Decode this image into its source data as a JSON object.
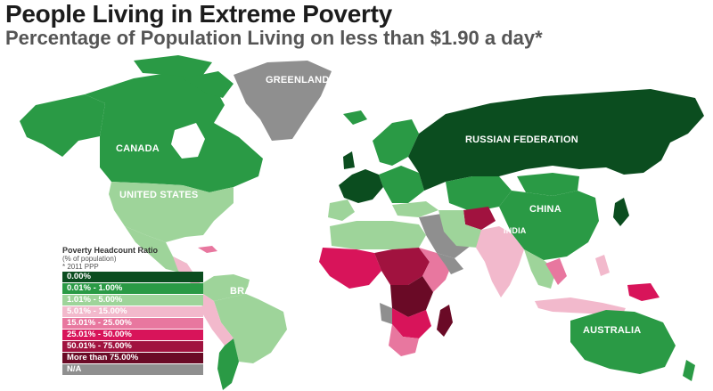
{
  "header": {
    "title": "People Living in Extreme Poverty",
    "subtitle": "Percentage of Population Living on less than $1.90 a day*"
  },
  "labels": {
    "greenland": "GREENLAND",
    "canada": "CANADA",
    "united_states": "UNITED STATES",
    "brazil": "BRAZIL",
    "russia": "RUSSIAN FEDERATION",
    "china": "CHINA",
    "india": "INDIA",
    "australia": "AUSTRALIA"
  },
  "legend": {
    "title": "Poverty Headcount Ratio",
    "subtitle": "(% of population)",
    "note": "* 2011 PPP",
    "items": [
      {
        "label": "0.00%",
        "color": "#0b4d1f"
      },
      {
        "label": "0.01% - 1.00%",
        "color": "#2a9a45"
      },
      {
        "label": "1.01% - 5.00%",
        "color": "#9ed49a"
      },
      {
        "label": "5.01% - 15.00%",
        "color": "#f2b9cc"
      },
      {
        "label": "15.01% - 25.00%",
        "color": "#e8779f"
      },
      {
        "label": "25.01% - 50.00%",
        "color": "#d8145a"
      },
      {
        "label": "50.01% - 75.00%",
        "color": "#a1123f"
      },
      {
        "label": "More than 75.00%",
        "color": "#6a0a26"
      },
      {
        "label": "N/A",
        "color": "#8f8f8f"
      }
    ]
  }
}
